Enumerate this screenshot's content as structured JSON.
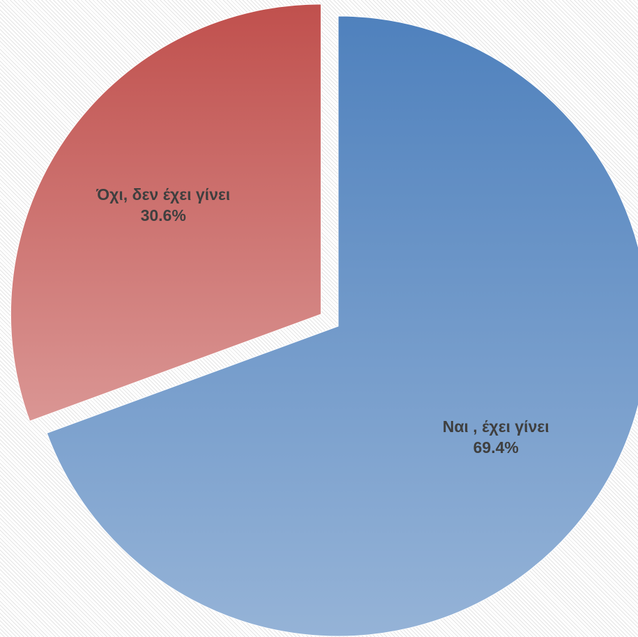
{
  "chart_data": {
    "type": "pie",
    "title": "",
    "legend": "none",
    "slices": [
      {
        "label": "Ναι , έχει γίνει",
        "value": 69.4,
        "value_label": "69.4%",
        "color_top": "#4f81bd",
        "color_bottom": "#95b3d7",
        "exploded": false
      },
      {
        "label": "Όχι, δεν έχει γίνει",
        "value": 30.6,
        "value_label": "30.6%",
        "color_top": "#c0504d",
        "color_bottom": "#da9694",
        "exploded": true
      }
    ]
  }
}
